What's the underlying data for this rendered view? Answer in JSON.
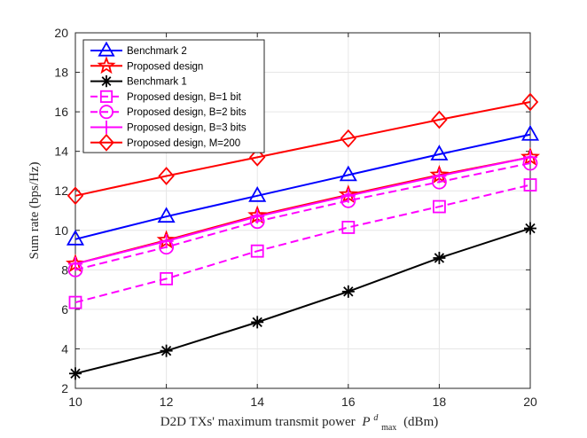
{
  "chart_data": {
    "type": "line",
    "title": "",
    "xlabel": "D2D TXs' maximum transmit power",
    "xlabel_symbol": "P",
    "xlabel_sup": "d",
    "xlabel_sub": "max",
    "xlabel_unit": "(dBm)",
    "ylabel": "Sum rate (bps/Hz)",
    "xlim": [
      10,
      20
    ],
    "ylim": [
      2,
      20
    ],
    "xticks": [
      10,
      12,
      14,
      16,
      18,
      20
    ],
    "yticks": [
      2,
      4,
      6,
      8,
      10,
      12,
      14,
      16,
      18,
      20
    ],
    "grid": true,
    "legend_position": "top-left",
    "x": [
      10,
      12,
      14,
      16,
      18,
      20
    ],
    "series": [
      {
        "name": "Benchmark 2",
        "color": "#0000ff",
        "marker": "triangle",
        "dash": "solid",
        "values": [
          9.55,
          10.7,
          11.75,
          12.8,
          13.85,
          14.85
        ]
      },
      {
        "name": "Proposed design",
        "color": "#ff0000",
        "marker": "star",
        "dash": "solid",
        "values": [
          8.3,
          9.5,
          10.75,
          11.8,
          12.8,
          13.7
        ]
      },
      {
        "name": "Benchmark 1",
        "color": "#000000",
        "marker": "asterisk",
        "dash": "solid",
        "values": [
          2.75,
          3.9,
          5.35,
          6.9,
          8.6,
          10.1
        ]
      },
      {
        "name": "Proposed design, B=1 bit",
        "color": "#ff00ff",
        "marker": "square",
        "dash": "dashed",
        "values": [
          6.35,
          7.55,
          8.95,
          10.15,
          11.2,
          12.3
        ]
      },
      {
        "name": "Proposed design, B=2 bits",
        "color": "#ff00ff",
        "marker": "circle",
        "dash": "dashed",
        "values": [
          8.0,
          9.15,
          10.45,
          11.5,
          12.45,
          13.4
        ]
      },
      {
        "name": "Proposed design, B=3 bits",
        "color": "#ff00ff",
        "marker": "plus",
        "dash": "solid",
        "values": [
          8.3,
          9.45,
          10.7,
          11.75,
          12.75,
          13.7
        ]
      },
      {
        "name": "Proposed design, M=200",
        "color": "#ff0000",
        "marker": "diamond",
        "dash": "solid",
        "values": [
          11.75,
          12.75,
          13.7,
          14.65,
          15.6,
          16.5
        ]
      }
    ]
  }
}
